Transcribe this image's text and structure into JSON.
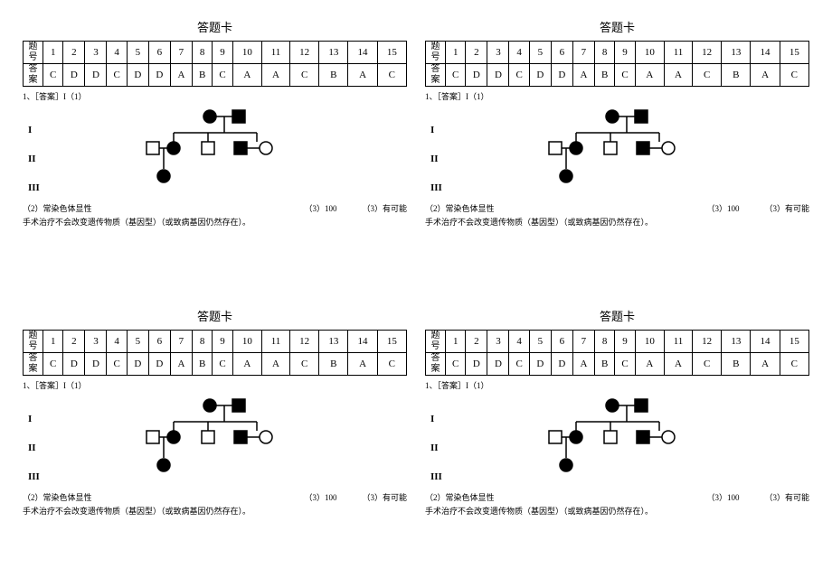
{
  "title": "答题卡",
  "header_label": "题号",
  "answer_label": "答案",
  "numbers": [
    "1",
    "2",
    "3",
    "4",
    "5",
    "6",
    "7",
    "8",
    "9",
    "10",
    "11",
    "12",
    "13",
    "14",
    "15"
  ],
  "answers": [
    "C",
    "D",
    "D",
    "C",
    "D",
    "D",
    "A",
    "B",
    "C",
    "A",
    "A",
    "C",
    "B",
    "A",
    "C"
  ],
  "line_after_table": "1、［答案］I（1）",
  "gen1": "I",
  "gen2": "II",
  "gen3": "III",
  "ans2": "（2）常染色体显性",
  "ans3": "（3）100",
  "ans4": "（3）有可能",
  "last_line": "手术治疗不会改变遗传物质（基因型）（或致病基因仍然存在）。",
  "colors": {
    "stroke": "#000000",
    "fill_affected": "#000000",
    "fill_unaffected": "#ffffff"
  }
}
